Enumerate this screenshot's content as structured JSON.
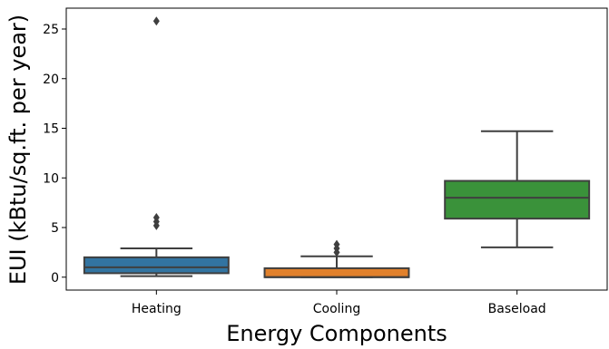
{
  "chart_data": {
    "type": "box",
    "title": "",
    "xlabel": "Energy Components",
    "ylabel": "EUI (kBtu/sq.ft. per year)",
    "ylim": [
      -1.3,
      27.1
    ],
    "yticks": [
      0,
      5,
      10,
      15,
      20,
      25
    ],
    "ytick_labels": [
      "0",
      "5",
      "10",
      "15",
      "20",
      "25"
    ],
    "grid": false,
    "legend": "none",
    "categories": [
      "Heating",
      "Cooling",
      "Baseload"
    ],
    "boxes": [
      {
        "category": "Heating",
        "color": "#3274a1",
        "whisker_low": 0.1,
        "q1": 0.4,
        "median": 1.0,
        "q3": 2.0,
        "whisker_high": 2.9,
        "outliers": [
          25.8,
          6.0,
          5.6,
          5.2
        ]
      },
      {
        "category": "Cooling",
        "color": "#e1812c",
        "whisker_low": 0.0,
        "q1": 0.0,
        "median": 0.0,
        "q3": 0.9,
        "whisker_high": 2.1,
        "outliers": [
          3.3,
          2.9,
          2.5
        ]
      },
      {
        "category": "Baseload",
        "color": "#3a923a",
        "whisker_low": 3.0,
        "q1": 5.9,
        "median": 8.0,
        "q3": 9.7,
        "whisker_high": 14.7,
        "outliers": []
      }
    ]
  }
}
